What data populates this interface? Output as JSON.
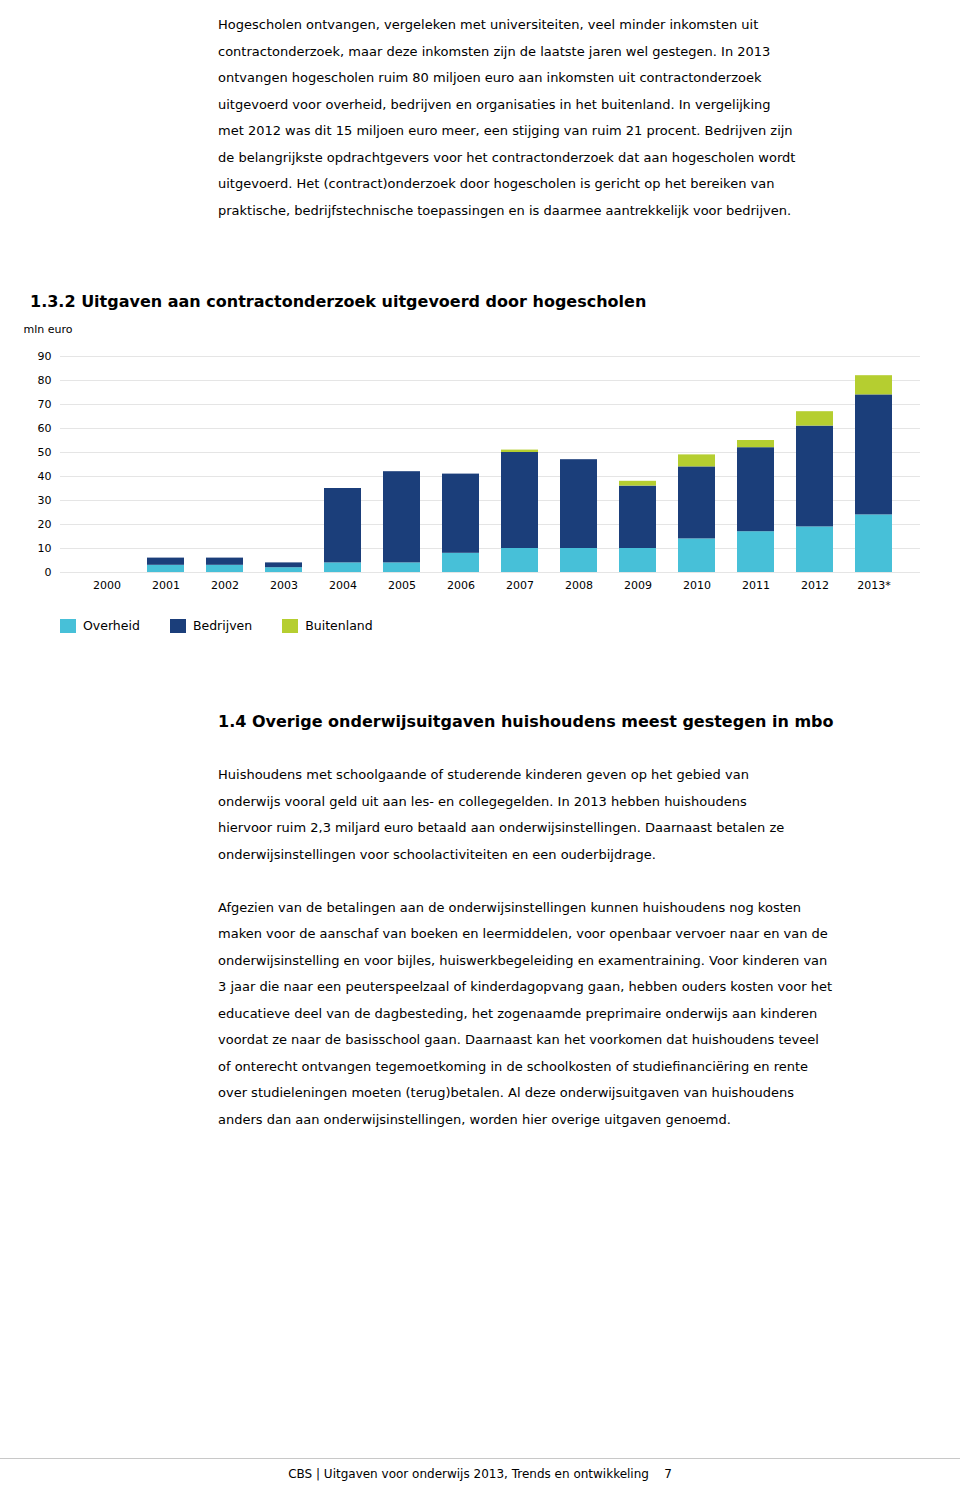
{
  "intro_lines": [
    "Hogescholen ontvangen, vergeleken met universiteiten, veel minder inkomsten uit",
    "contractonderzoek, maar deze inkomsten zijn de laatste jaren wel gestegen. In 2013",
    "ontvangen hogescholen ruim 80 miljoen euro aan inkomsten uit contractonderzoek",
    "uitgevoerd voor overheid, bedrijven en organisaties in het buitenland. In vergelijking",
    "met 2012 was dit 15 miljoen euro meer, een stijging van ruim 21 procent. Bedrijven zijn",
    "de belangrijkste opdrachtgevers voor het contractonderzoek dat aan hogescholen wordt",
    "uitgevoerd. Het (contract)onderzoek door hogescholen is gericht op het bereiken van",
    "praktische, bedrijfstechnische toepassingen en is daarmee aantrekkelijk voor bedrijven."
  ],
  "chart_data": {
    "type": "bar",
    "title": "1.3.2  Uitgaven aan contractonderzoek uitgevoerd door hogescholen",
    "ylabel": "mln euro",
    "categories": [
      "2000",
      "2001",
      "2002",
      "2003",
      "2004",
      "2005",
      "2006",
      "2007",
      "2008",
      "2009",
      "2010",
      "2011",
      "2012",
      "2013*"
    ],
    "series": [
      {
        "name": "Overheid",
        "color": "#47c0d8",
        "values": [
          0,
          3,
          3,
          2,
          4,
          4,
          8,
          10,
          10,
          10,
          14,
          17,
          19,
          24
        ]
      },
      {
        "name": "Bedrijven",
        "color": "#1b3e7a",
        "values": [
          0,
          3,
          3,
          2,
          31,
          38,
          33,
          40,
          37,
          26,
          30,
          35,
          42,
          50
        ]
      },
      {
        "name": "Buitenland",
        "color": "#b5ce30",
        "values": [
          0,
          0,
          0,
          0,
          0,
          0,
          0,
          1,
          0,
          2,
          5,
          3,
          6,
          8
        ]
      }
    ],
    "stacked": true,
    "ylim": [
      0,
      90
    ],
    "yticks": [
      0,
      10,
      20,
      30,
      40,
      50,
      60,
      70,
      80,
      90
    ],
    "grid": true,
    "legend": "bottom"
  },
  "section_title": "1.4  Overige onderwijsuitgaven huishoudens meest gestegen in mbo",
  "section_paragraphs": [
    [
      "Huishoudens met schoolgaande of studerende kinderen geven op het gebied van",
      "onderwijs vooral geld uit aan les- en collegegelden. In 2013 hebben huishoudens",
      "hiervoor ruim 2,3 miljard euro betaald aan onderwijsinstellingen. Daarnaast betalen ze",
      "onderwijsinstellingen voor schoolactiviteiten en een ouderbijdrage."
    ],
    [
      "Afgezien van de betalingen aan de onderwijsinstellingen kunnen huishoudens nog kosten",
      "maken voor de aanschaf van boeken en leermiddelen, voor openbaar vervoer naar en van de",
      "onderwijsinstelling en voor bijles, huiswerkbegeleiding en examentraining. Voor kinderen van",
      "3 jaar die naar een peuterspeelzaal of kinderdagopvang gaan, hebben ouders kosten voor het",
      "educatieve deel van de dagbesteding, het zogenaamde preprimaire onderwijs aan kinderen",
      "voordat ze naar de basisschool gaan. Daarnaast kan het voorkomen dat huishoudens teveel",
      "of onterecht ontvangen tegemoetkoming in de schoolkosten of studiefinanciëring en rente",
      "over studieleningen moeten (terug)betalen. Al deze onderwijsuitgaven van huishoudens",
      "anders dan aan onderwijsinstellingen, worden hier overige uitgaven genoemd."
    ]
  ],
  "footer": "CBS | Uitgaven voor onderwijs 2013, Trends en ontwikkeling    7"
}
